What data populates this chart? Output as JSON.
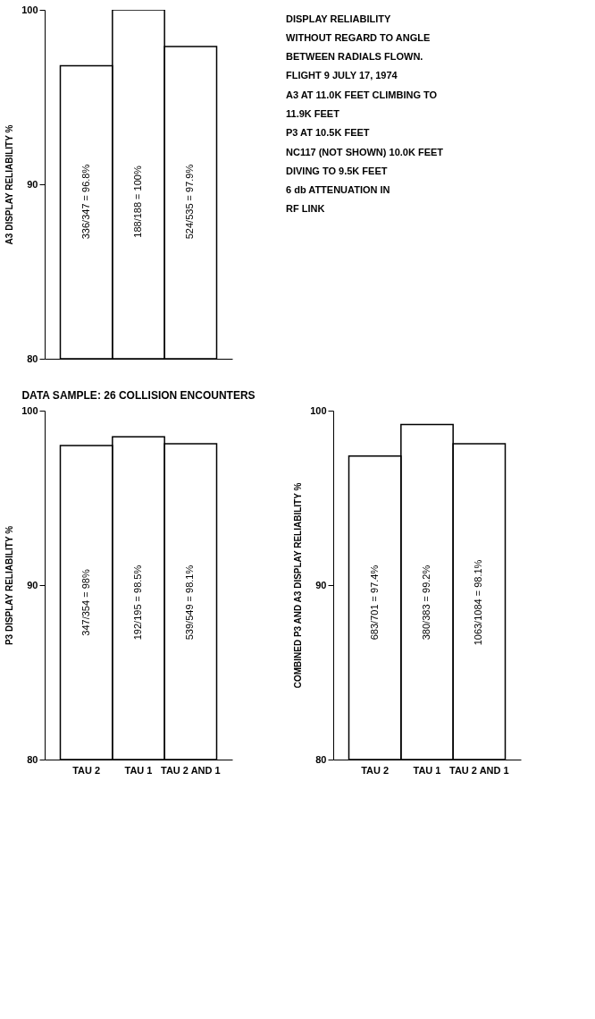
{
  "chart_data": [
    {
      "type": "bar",
      "ylabel": "A3 DISPLAY RELIABILITY %",
      "categories": [
        null,
        null,
        null
      ],
      "tick_labels": "y",
      "series": [
        {
          "color": "#000000",
          "values": [
            96.8,
            100,
            97.9
          ]
        }
      ],
      "value_labels": [
        "336/347 = 96.8%",
        "188/188 = 100%",
        "524/535 = 97.9%"
      ],
      "ylim": [
        80,
        100
      ],
      "yticks": [
        80,
        90,
        100
      ],
      "grid": false
    },
    {
      "type": "bar",
      "ylabel": "P3 DISPLAY RELIABILITY %",
      "categories": [
        "TAU 2",
        "TAU 1",
        "TAU 2 AND 1"
      ],
      "series": [
        {
          "color": "#000000",
          "values": [
            98,
            98.5,
            98.1
          ]
        }
      ],
      "value_labels": [
        "347/354 = 98%",
        "192/195 = 98.5%",
        "539/549 = 98.1%"
      ],
      "ylim": [
        80,
        100
      ],
      "yticks": [
        80,
        90,
        100
      ],
      "grid": false,
      "annotations": [
        "DATA SAMPLE:  26 COLLISION ENCOUNTERS"
      ]
    },
    {
      "type": "bar",
      "ylabel": "COMBINED P3 AND A3 DISPLAY RELIABILITY %",
      "categories": [
        "TAU 2",
        "TAU 1",
        "TAU 2 AND 1"
      ],
      "series": [
        {
          "color": "#000000",
          "values": [
            97.4,
            99.2,
            98.1
          ]
        }
      ],
      "value_labels": [
        "683/701 = 97.4%",
        "380/383 = 99.2%",
        "1063/1084 = 98.1%"
      ],
      "ylim": [
        80,
        100
      ],
      "yticks": [
        80,
        90,
        100
      ],
      "grid": false,
      "annotations": [
        "DISPLAY RELIABILITY",
        "WITHOUT REGARD TO ANGLE",
        "BETWEEN RADIALS FLOWN.",
        "FLIGHT 9  JULY 17, 1974",
        "A3 AT 11.0K FEET CLIMBING TO",
        "11.9K FEET",
        "P3 AT 10.5K FEET",
        "NC117 (NOT SHOWN) 10.0K FEET",
        "DIVING TO 9.5K FEET",
        "6 db ATTENUATION IN",
        "RF LINK"
      ]
    }
  ]
}
